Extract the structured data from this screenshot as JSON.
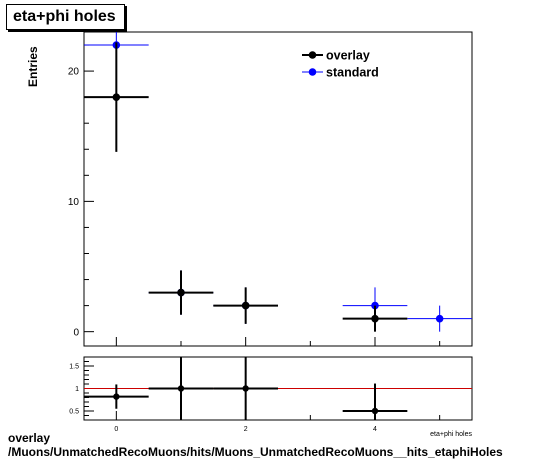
{
  "title": "eta+phi holes",
  "footer": {
    "line1": "overlay",
    "line2": "/Muons/UnmatchedRecoMuons/hits/Muons_UnmatchedRecoMuons__hits_etaphiHoles"
  },
  "chart_data": [
    {
      "type": "scatter",
      "title": "eta+phi holes",
      "xlabel": "eta+phi holes",
      "ylabel": "Entries",
      "xlim": [
        -0.5,
        5.5
      ],
      "ylim": [
        -1.1,
        23.0
      ],
      "xticks": [
        "0",
        "2",
        "4"
      ],
      "yticks": [
        "0",
        "10",
        "20"
      ],
      "legend_position": "top-right",
      "grid": false,
      "series": [
        {
          "name": "overlay",
          "color": "#000000",
          "points": [
            {
              "x": 0,
              "y": 18,
              "xerr": 0.5,
              "yerr": 4.2
            },
            {
              "x": 1,
              "y": 3,
              "xerr": 0.5,
              "yerr": 1.7
            },
            {
              "x": 2,
              "y": 2,
              "xerr": 0.5,
              "yerr": 1.4
            },
            {
              "x": 4,
              "y": 1,
              "xerr": 0.5,
              "yerr": 1.0
            }
          ]
        },
        {
          "name": "standard",
          "color": "#0000ff",
          "points": [
            {
              "x": 0,
              "y": 22,
              "xerr": 0.5,
              "yerr": 4.7
            },
            {
              "x": 1,
              "y": 3,
              "xerr": 0.5,
              "yerr": 1.7
            },
            {
              "x": 2,
              "y": 2,
              "xerr": 0.5,
              "yerr": 1.4
            },
            {
              "x": 4,
              "y": 2,
              "xerr": 0.5,
              "yerr": 1.4
            },
            {
              "x": 5,
              "y": 1,
              "xerr": 0.5,
              "yerr": 1.0
            }
          ]
        }
      ]
    },
    {
      "type": "scatter",
      "title": "",
      "xlabel": "",
      "ylabel": "",
      "xlim": [
        -0.5,
        5.5
      ],
      "ylim": [
        0.3,
        1.7
      ],
      "xticks": [
        "0",
        "2",
        "4"
      ],
      "yticks": [
        "0.5",
        "1",
        "1.5"
      ],
      "reference_line": {
        "y": 1.0,
        "color": "#cc0000"
      },
      "series": [
        {
          "name": "",
          "color": "#000000",
          "points": [
            {
              "x": 0,
              "y": 0.82,
              "xerr": 0.5,
              "yerr": 0.27
            },
            {
              "x": 1,
              "y": 1.0,
              "xerr": 0.5,
              "yerr": 0.82
            },
            {
              "x": 2,
              "y": 1.0,
              "xerr": 0.5,
              "yerr": 1.0
            },
            {
              "x": 4,
              "y": 0.5,
              "xerr": 0.5,
              "yerr": 0.61
            }
          ]
        }
      ]
    }
  ]
}
